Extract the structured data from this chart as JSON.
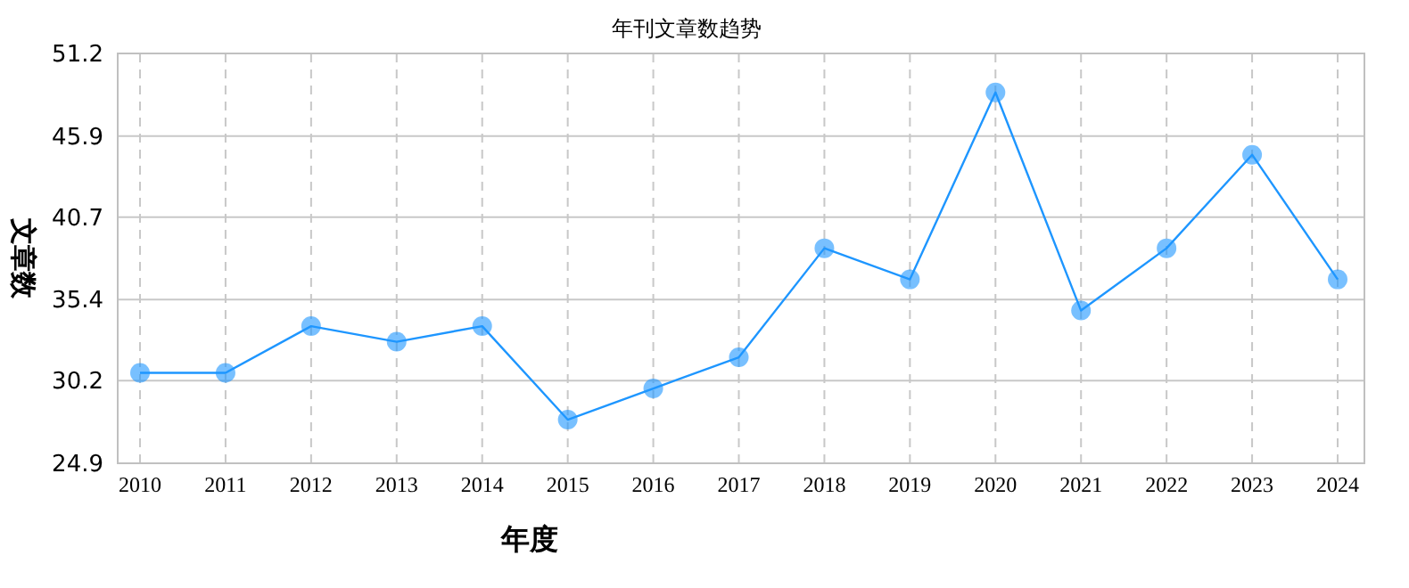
{
  "chart_data": {
    "type": "line",
    "title": "年刊文章数趋势",
    "xlabel": "年度",
    "ylabel": "文章数",
    "categories": [
      "2010",
      "2011",
      "2012",
      "2013",
      "2014",
      "2015",
      "2016",
      "2017",
      "2018",
      "2019",
      "2020",
      "2021",
      "2022",
      "2023",
      "2024"
    ],
    "series": [
      {
        "color": "#1e96ff",
        "values": [
          30.7,
          30.7,
          33.7,
          32.7,
          33.7,
          27.7,
          29.7,
          31.7,
          38.7,
          36.7,
          48.7,
          34.7,
          38.7,
          44.7,
          36.7
        ]
      }
    ],
    "ylim": [
      24.9,
      51.2
    ],
    "yticks": [
      24.9,
      30.2,
      35.4,
      40.7,
      45.9,
      51.2
    ],
    "grid": true,
    "marker": "circle",
    "line_style": "solid"
  }
}
